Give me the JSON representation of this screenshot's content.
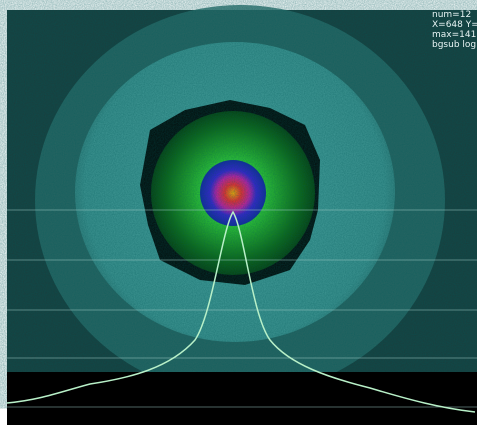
{
  "overlay": {
    "lines": [
      "num=12",
      "X=648 Y=",
      "max=141",
      "bgsub log"
    ]
  }
}
